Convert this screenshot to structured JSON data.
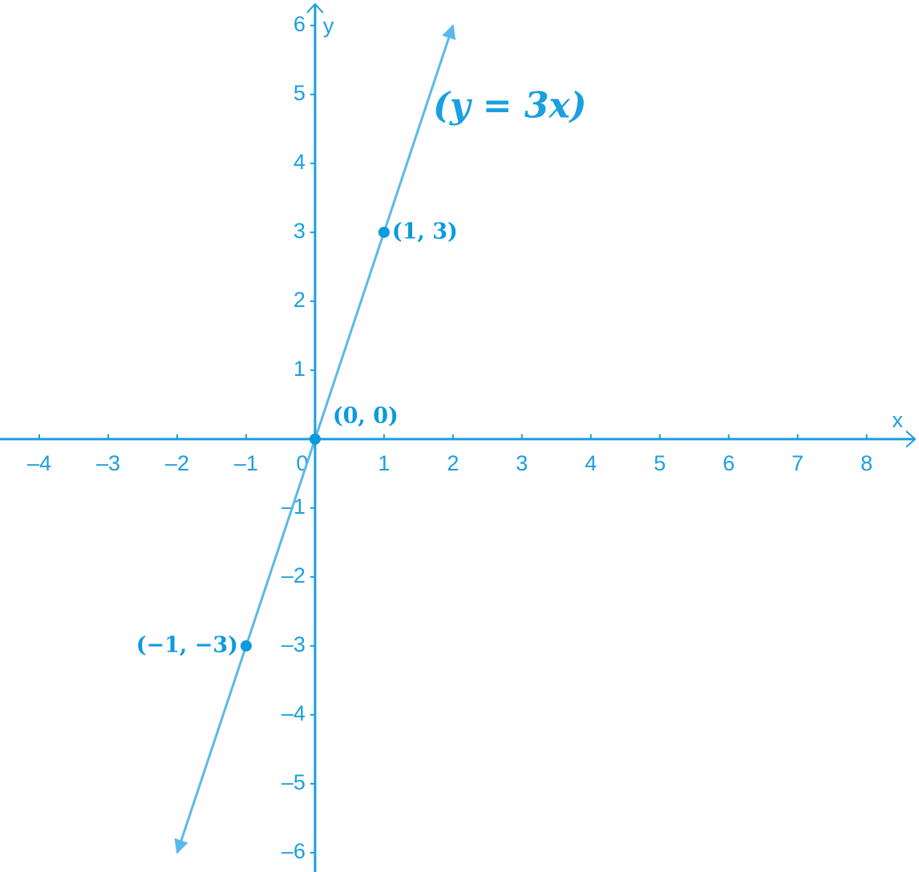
{
  "chart_data": {
    "type": "line",
    "annotation": "(y = 3x)",
    "xlabel": "x",
    "ylabel": "y",
    "xlim": [
      -4.57,
      8.76
    ],
    "ylim": [
      -6.28,
      6.37
    ],
    "xticks": [
      {
        "value": -4,
        "label": "–4"
      },
      {
        "value": -3,
        "label": "–3"
      },
      {
        "value": -2,
        "label": "–2"
      },
      {
        "value": -1,
        "label": "–1"
      },
      0,
      1,
      2,
      3,
      4,
      5,
      6,
      7,
      8
    ],
    "yticks": [
      {
        "value": -6,
        "label": "–6"
      },
      {
        "value": -5,
        "label": "–5"
      },
      {
        "value": -4,
        "label": "–4"
      },
      {
        "value": -3,
        "label": "–3"
      },
      {
        "value": -2,
        "label": "–2"
      },
      {
        "value": -1,
        "label": "–1"
      },
      1,
      2,
      3,
      4,
      5,
      6
    ],
    "axis_color": "#1a9fe0",
    "series": [
      {
        "type": "line",
        "color": "#5ab9ec",
        "x": [
          -2,
          2
        ],
        "values": [
          -6,
          6
        ]
      },
      {
        "type": "scatter",
        "color": "#0a9ae0",
        "x": [
          -1,
          0,
          1
        ],
        "values": [
          -3,
          0,
          3
        ],
        "value_labels": [
          "(−1, −3)",
          "(0, 0)",
          "(1, 3)"
        ]
      }
    ]
  }
}
